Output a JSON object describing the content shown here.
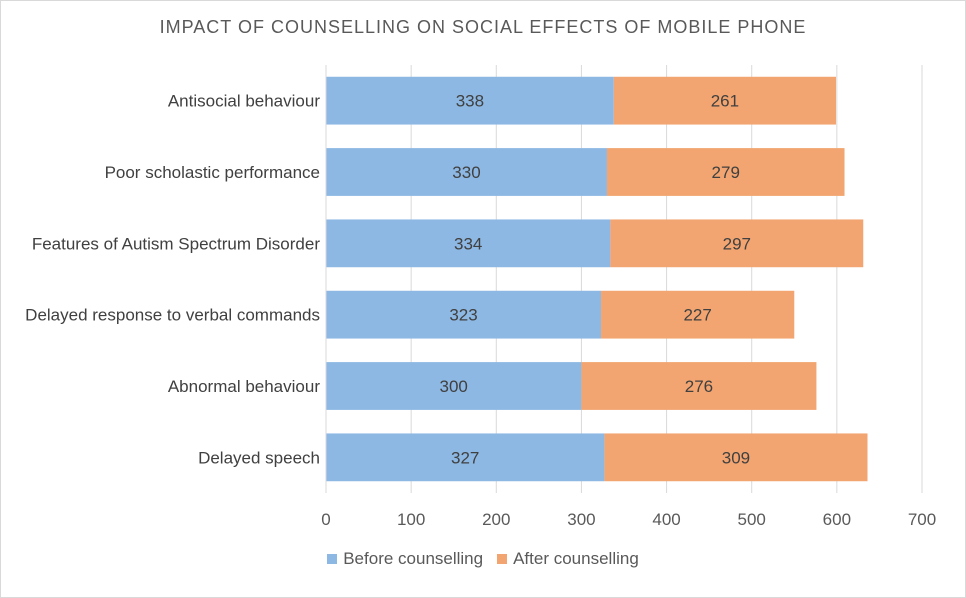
{
  "chart_data": {
    "type": "bar",
    "orientation": "horizontal",
    "stacked": true,
    "title": "IMPACT OF COUNSELLING ON SOCIAL EFFECTS OF MOBILE PHONE",
    "xlabel": "",
    "ylabel": "",
    "xlim": [
      0,
      700
    ],
    "xticks": [
      0,
      100,
      200,
      300,
      400,
      500,
      600,
      700
    ],
    "grid": true,
    "legend_position": "bottom",
    "categories": [
      "Antisocial behaviour",
      "Poor scholastic performance",
      "Features of Autism Spectrum Disorder",
      "Delayed response to verbal commands",
      "Abnormal behaviour",
      "Delayed speech"
    ],
    "series": [
      {
        "name": "Before counselling",
        "color": "#8db8e3",
        "values": [
          338,
          330,
          334,
          323,
          300,
          327
        ]
      },
      {
        "name": "After counselling",
        "color": "#f2a570",
        "values": [
          261,
          279,
          297,
          227,
          276,
          309
        ]
      }
    ]
  }
}
